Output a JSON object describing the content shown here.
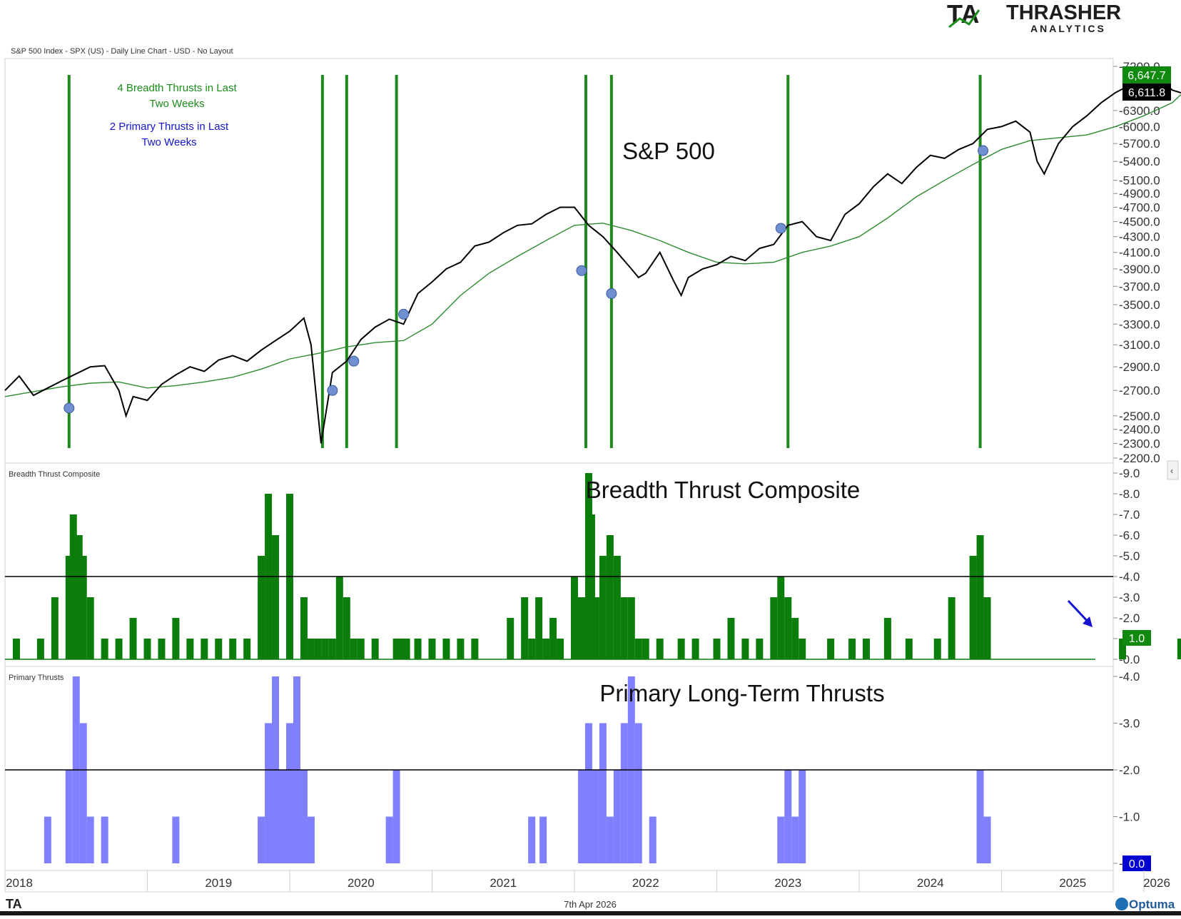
{
  "header": {
    "logo_text": "THRASHER",
    "logo_sub": "ANALYTICS",
    "chart_info": "S&P 500 Index - SPX (US) - Daily Line Chart - USD - No Layout"
  },
  "panels": {
    "price": {
      "big_label": "S&P 500",
      "annotation_green_1": "4 Breadth Thrusts in Last",
      "annotation_green_2": "Two Weeks",
      "annotation_blue_1": "2 Primary Thrusts in Last",
      "annotation_blue_2": "Two Weeks",
      "last_price_label": "6,647.7",
      "last_ma_label": "6,611.8"
    },
    "breadth": {
      "small_label": "Breadth Thrust Composite",
      "big_label": "Breadth Thrust Composite",
      "last_value_label": "1.0"
    },
    "primary": {
      "small_label": "Primary Thrusts",
      "big_label": "Primary Long-Term Thrusts",
      "last_value_label": "0.0"
    }
  },
  "footer": {
    "date": "7th Apr 2026",
    "brand": "Optuma",
    "logo_small": "TA"
  },
  "colors": {
    "price_line": "#000000",
    "ma_line": "#2e8b2e",
    "thrust_vline": "#1e8a1e",
    "breadth_bar": "#0a7d0a",
    "primary_bar": "#8080ff",
    "marker": "#6f8fd0",
    "green_text": "#1a8c1a",
    "blue_text": "#1414d2"
  },
  "chart_data": [
    {
      "type": "line",
      "title": "S&P 500",
      "series": [
        {
          "name": "S&P 500",
          "x": [
            2018.0,
            2018.1,
            2018.2,
            2018.3,
            2018.4,
            2018.5,
            2018.6,
            2018.7,
            2018.8,
            2018.85,
            2018.9,
            2019.0,
            2019.1,
            2019.2,
            2019.3,
            2019.4,
            2019.5,
            2019.6,
            2019.7,
            2019.8,
            2019.9,
            2020.0,
            2020.1,
            2020.15,
            2020.2,
            2020.22,
            2020.3,
            2020.4,
            2020.5,
            2020.6,
            2020.7,
            2020.8,
            2020.9,
            2021.0,
            2021.1,
            2021.2,
            2021.3,
            2021.4,
            2021.5,
            2021.6,
            2021.7,
            2021.8,
            2021.9,
            2022.0,
            2022.1,
            2022.2,
            2022.3,
            2022.4,
            2022.45,
            2022.5,
            2022.6,
            2022.7,
            2022.75,
            2022.8,
            2022.9,
            2023.0,
            2023.1,
            2023.2,
            2023.3,
            2023.4,
            2023.5,
            2023.6,
            2023.7,
            2023.8,
            2023.9,
            2024.0,
            2024.1,
            2024.2,
            2024.3,
            2024.4,
            2024.5,
            2024.6,
            2024.7,
            2024.8,
            2024.9,
            2025.0,
            2025.1,
            2025.2,
            2025.25,
            2025.3,
            2025.4,
            2025.5,
            2025.6,
            2025.7,
            2025.8,
            2025.9,
            2026.0,
            2026.1,
            2026.2,
            2026.26
          ],
          "values": [
            2700,
            2820,
            2660,
            2720,
            2780,
            2840,
            2900,
            2910,
            2700,
            2500,
            2650,
            2620,
            2750,
            2830,
            2900,
            2860,
            2960,
            3000,
            2950,
            3050,
            3140,
            3230,
            3360,
            3100,
            2500,
            2300,
            2850,
            2950,
            3150,
            3270,
            3350,
            3300,
            3620,
            3750,
            3900,
            3980,
            4180,
            4230,
            4350,
            4450,
            4470,
            4600,
            4700,
            4700,
            4450,
            4300,
            4100,
            3900,
            3800,
            3850,
            4100,
            3750,
            3600,
            3800,
            3900,
            3950,
            4050,
            4000,
            4150,
            4200,
            4450,
            4500,
            4300,
            4250,
            4600,
            4750,
            5000,
            5200,
            5050,
            5300,
            5500,
            5450,
            5600,
            5700,
            5950,
            6000,
            6100,
            5900,
            5400,
            5200,
            5700,
            6000,
            6200,
            6450,
            6650,
            6800,
            6900,
            6950,
            6700,
            6647.7
          ]
        },
        {
          "name": "200-day MA",
          "x": [
            2018.0,
            2018.2,
            2018.4,
            2018.6,
            2018.8,
            2019.0,
            2019.2,
            2019.4,
            2019.6,
            2019.8,
            2020.0,
            2020.2,
            2020.4,
            2020.6,
            2020.8,
            2021.0,
            2021.2,
            2021.4,
            2021.6,
            2021.8,
            2022.0,
            2022.2,
            2022.4,
            2022.6,
            2022.8,
            2023.0,
            2023.2,
            2023.4,
            2023.6,
            2023.8,
            2024.0,
            2024.2,
            2024.4,
            2024.6,
            2024.8,
            2025.0,
            2025.2,
            2025.4,
            2025.6,
            2025.8,
            2026.0,
            2026.2,
            2026.26
          ],
          "values": [
            2650,
            2690,
            2730,
            2760,
            2770,
            2720,
            2740,
            2770,
            2810,
            2880,
            2970,
            3020,
            3080,
            3120,
            3140,
            3300,
            3600,
            3850,
            4050,
            4250,
            4450,
            4480,
            4380,
            4250,
            4100,
            3980,
            3960,
            3980,
            4100,
            4180,
            4300,
            4550,
            4850,
            5100,
            5350,
            5600,
            5750,
            5800,
            5850,
            6000,
            6200,
            6450,
            6611.8
          ]
        }
      ],
      "ylim": [
        2200,
        7200
      ],
      "y_ticks": [
        2200,
        2300,
        2400,
        2500,
        2700,
        2900,
        3100,
        3300,
        3500,
        3700,
        3900,
        4100,
        4300,
        4500,
        4700,
        4900,
        5100,
        5400,
        5700,
        6000,
        6300,
        7200
      ],
      "y_scale": "log",
      "breadth_thrust_dates": [
        2018.45,
        2020.23,
        2020.4,
        2020.75,
        2022.08,
        2022.26,
        2023.5,
        2024.85
      ],
      "thrust_markers": [
        {
          "x": 2018.45,
          "y": 2560
        },
        {
          "x": 2020.3,
          "y": 2700
        },
        {
          "x": 2020.45,
          "y": 2950
        },
        {
          "x": 2020.8,
          "y": 3400
        },
        {
          "x": 2022.05,
          "y": 3880
        },
        {
          "x": 2022.26,
          "y": 3620
        },
        {
          "x": 2023.45,
          "y": 4410
        },
        {
          "x": 2024.87,
          "y": 5580
        }
      ]
    },
    {
      "type": "bar",
      "title": "Breadth Thrust Composite",
      "x": [
        2018.08,
        2018.25,
        2018.35,
        2018.45,
        2018.48,
        2018.52,
        2018.55,
        2018.6,
        2018.7,
        2018.8,
        2018.9,
        2019.0,
        2019.1,
        2019.2,
        2019.3,
        2019.4,
        2019.5,
        2019.6,
        2019.7,
        2019.8,
        2019.85,
        2019.9,
        2020.0,
        2020.1,
        2020.15,
        2020.2,
        2020.25,
        2020.3,
        2020.35,
        2020.4,
        2020.45,
        2020.5,
        2020.6,
        2020.75,
        2020.78,
        2020.82,
        2020.9,
        2021.0,
        2021.1,
        2021.2,
        2021.3,
        2021.55,
        2021.65,
        2021.7,
        2021.75,
        2021.8,
        2021.85,
        2021.9,
        2022.0,
        2022.05,
        2022.1,
        2022.12,
        2022.15,
        2022.2,
        2022.25,
        2022.3,
        2022.35,
        2022.4,
        2022.45,
        2022.5,
        2022.6,
        2022.75,
        2022.85,
        2023.0,
        2023.1,
        2023.2,
        2023.3,
        2023.4,
        2023.45,
        2023.5,
        2023.55,
        2023.6,
        2023.8,
        2023.95,
        2024.05,
        2024.2,
        2024.35,
        2024.55,
        2024.65,
        2024.8,
        2024.85,
        2024.9,
        2025.85,
        2026.26
      ],
      "values": [
        1,
        1,
        3,
        5,
        7,
        6,
        5,
        3,
        1,
        1,
        2,
        1,
        1,
        2,
        1,
        1,
        1,
        1,
        1,
        5,
        8,
        6,
        8,
        3,
        1,
        1,
        1,
        1,
        4,
        3,
        1,
        1,
        1,
        1,
        1,
        1,
        1,
        1,
        1,
        1,
        1,
        2,
        3,
        1,
        3,
        1,
        2,
        1,
        4,
        3,
        9,
        7,
        3,
        5,
        6,
        5,
        3,
        3,
        1,
        1,
        1,
        1,
        1,
        1,
        2,
        1,
        1,
        3,
        4,
        3,
        2,
        1,
        1,
        1,
        1,
        2,
        1,
        1,
        3,
        5,
        6,
        3,
        1,
        1
      ],
      "ylim": [
        0,
        9
      ],
      "y_ticks": [
        0.0,
        1.0,
        2.0,
        3.0,
        4.0,
        5.0,
        6.0,
        7.0,
        8.0,
        9.0
      ],
      "threshold": 4.0
    },
    {
      "type": "bar",
      "title": "Primary Long-Term Thrusts",
      "x": [
        2018.3,
        2018.45,
        2018.5,
        2018.55,
        2018.6,
        2018.7,
        2019.2,
        2019.8,
        2019.85,
        2019.9,
        2019.95,
        2020.0,
        2020.05,
        2020.1,
        2020.15,
        2020.7,
        2020.75,
        2021.7,
        2021.78,
        2022.05,
        2022.1,
        2022.15,
        2022.2,
        2022.25,
        2022.3,
        2022.35,
        2022.4,
        2022.45,
        2022.55,
        2023.45,
        2023.5,
        2023.55,
        2023.6,
        2024.85,
        2024.9
      ],
      "values": [
        1,
        2,
        4,
        3,
        1,
        1,
        1,
        1,
        3,
        4,
        2,
        3,
        4,
        2,
        1,
        1,
        2,
        1,
        1,
        2,
        3,
        2,
        3,
        1,
        2,
        3,
        4,
        3,
        1,
        1,
        2,
        1,
        2,
        2,
        1
      ],
      "ylim": [
        0,
        4
      ],
      "y_ticks": [
        0.0,
        1.0,
        2.0,
        3.0,
        4.0
      ],
      "threshold": 2.0
    }
  ],
  "x_axis": {
    "labels": [
      "2018",
      "2019",
      "2020",
      "2021",
      "2022",
      "2023",
      "2024",
      "2025",
      "2026"
    ]
  }
}
